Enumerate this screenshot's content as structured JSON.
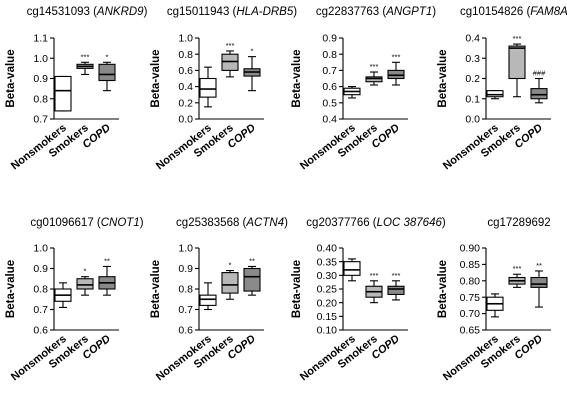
{
  "colors": {
    "nonsmokers": "#ffffff",
    "smokers": "#b8b8b8",
    "copd": "#8a8a8a",
    "line": "#000000"
  },
  "chart_data": [
    {
      "type": "box",
      "title": {
        "prefix": "cg14531093 (",
        "gene": "ANKRD9",
        "suffix": ")"
      },
      "ylabel": "Beta-value",
      "ylim": [
        0.7,
        1.1
      ],
      "yticks": [
        "0.7",
        "0.8",
        "0.9",
        "1.0",
        "1.1"
      ],
      "categories": [
        "Nonsmokers",
        "Smokers",
        "COPD"
      ],
      "boxes": [
        {
          "min": 0.74,
          "q1": 0.74,
          "median": 0.84,
          "q3": 0.91,
          "max": 0.91,
          "sig": ""
        },
        {
          "min": 0.92,
          "q1": 0.95,
          "median": 0.96,
          "q3": 0.97,
          "max": 0.98,
          "sig": "***"
        },
        {
          "min": 0.84,
          "q1": 0.89,
          "median": 0.92,
          "q3": 0.97,
          "max": 0.98,
          "sig": "*"
        }
      ]
    },
    {
      "type": "box",
      "title": {
        "prefix": "cg15011943 (",
        "gene": "HLA-DRB5",
        "suffix": ")"
      },
      "ylabel": "Beta-value",
      "ylim": [
        0.0,
        1.0
      ],
      "yticks": [
        "0.0",
        "0.2",
        "0.4",
        "0.6",
        "0.8",
        "1.0"
      ],
      "categories": [
        "Nonsmokers",
        "Smokers",
        "COPD"
      ],
      "boxes": [
        {
          "min": 0.15,
          "q1": 0.27,
          "median": 0.37,
          "q3": 0.5,
          "max": 0.64,
          "sig": ""
        },
        {
          "min": 0.52,
          "q1": 0.6,
          "median": 0.71,
          "q3": 0.8,
          "max": 0.84,
          "sig": "***"
        },
        {
          "min": 0.35,
          "q1": 0.53,
          "median": 0.58,
          "q3": 0.62,
          "max": 0.77,
          "sig": "*"
        }
      ]
    },
    {
      "type": "box",
      "title": {
        "prefix": "cg22837763 (",
        "gene": "ANGPT1",
        "suffix": ")"
      },
      "ylabel": "Beta-value",
      "ylim": [
        0.4,
        0.9
      ],
      "yticks": [
        "0.4",
        "0.5",
        "0.6",
        "0.7",
        "0.8",
        "0.9"
      ],
      "categories": [
        "Nonsmokers",
        "Smokers",
        "COPD"
      ],
      "boxes": [
        {
          "min": 0.53,
          "q1": 0.55,
          "median": 0.57,
          "q3": 0.59,
          "max": 0.6,
          "sig": ""
        },
        {
          "min": 0.61,
          "q1": 0.63,
          "median": 0.65,
          "q3": 0.66,
          "max": 0.69,
          "sig": "***"
        },
        {
          "min": 0.61,
          "q1": 0.65,
          "median": 0.67,
          "q3": 0.7,
          "max": 0.75,
          "sig": "***"
        }
      ]
    },
    {
      "type": "box",
      "title": {
        "prefix": "cg10154826 (",
        "gene": "FAM8A1",
        "suffix": ")"
      },
      "ylabel": "Beta-value",
      "ylim": [
        0.0,
        0.4
      ],
      "yticks": [
        "0.0",
        "0.1",
        "0.2",
        "0.3",
        "0.4"
      ],
      "categories": [
        "Nonsmokers",
        "Smokers",
        "COPD"
      ],
      "boxes": [
        {
          "min": 0.1,
          "q1": 0.11,
          "median": 0.12,
          "q3": 0.14,
          "max": 0.14,
          "sig": ""
        },
        {
          "min": 0.11,
          "q1": 0.2,
          "median": 0.35,
          "q3": 0.36,
          "max": 0.37,
          "sig": "***"
        },
        {
          "min": 0.08,
          "q1": 0.1,
          "median": 0.12,
          "q3": 0.15,
          "max": 0.2,
          "sig": "###"
        }
      ]
    },
    {
      "type": "box",
      "title": {
        "prefix": "cg01096617 (",
        "gene": "CNOT1",
        "suffix": ")"
      },
      "ylabel": "Beta-value",
      "ylim": [
        0.6,
        1.0
      ],
      "yticks": [
        "0.6",
        "0.7",
        "0.8",
        "0.9",
        "1.0"
      ],
      "categories": [
        "Nonsmokers",
        "Smokers",
        "COPD"
      ],
      "boxes": [
        {
          "min": 0.71,
          "q1": 0.74,
          "median": 0.77,
          "q3": 0.8,
          "max": 0.83,
          "sig": ""
        },
        {
          "min": 0.77,
          "q1": 0.8,
          "median": 0.82,
          "q3": 0.85,
          "max": 0.86,
          "sig": "*"
        },
        {
          "min": 0.77,
          "q1": 0.8,
          "median": 0.83,
          "q3": 0.86,
          "max": 0.91,
          "sig": "**"
        }
      ]
    },
    {
      "type": "box",
      "title": {
        "prefix": "cg25383568 (",
        "gene": "ACTN4",
        "suffix": ")"
      },
      "ylabel": "Beta-value",
      "ylim": [
        0.6,
        1.0
      ],
      "yticks": [
        "0.6",
        "0.7",
        "0.8",
        "0.9",
        "1.0"
      ],
      "categories": [
        "Nonsmokers",
        "Smokers",
        "COPD"
      ],
      "boxes": [
        {
          "min": 0.7,
          "q1": 0.72,
          "median": 0.75,
          "q3": 0.77,
          "max": 0.83,
          "sig": ""
        },
        {
          "min": 0.75,
          "q1": 0.78,
          "median": 0.82,
          "q3": 0.88,
          "max": 0.89,
          "sig": "*"
        },
        {
          "min": 0.77,
          "q1": 0.79,
          "median": 0.86,
          "q3": 0.9,
          "max": 0.91,
          "sig": "**"
        }
      ]
    },
    {
      "type": "box",
      "title": {
        "prefix": "cg20377766 (",
        "gene": "LOC 387646",
        "suffix": ")"
      },
      "ylabel": "Beta-value",
      "ylim": [
        0.1,
        0.4
      ],
      "yticks": [
        "0.10",
        "0.15",
        "0.20",
        "0.25",
        "0.30",
        "0.35",
        "0.40"
      ],
      "categories": [
        "Nonsmokers",
        "Smokers",
        "COPD"
      ],
      "boxes": [
        {
          "min": 0.28,
          "q1": 0.3,
          "median": 0.32,
          "q3": 0.35,
          "max": 0.36,
          "sig": ""
        },
        {
          "min": 0.2,
          "q1": 0.22,
          "median": 0.24,
          "q3": 0.26,
          "max": 0.28,
          "sig": "***"
        },
        {
          "min": 0.21,
          "q1": 0.23,
          "median": 0.25,
          "q3": 0.26,
          "max": 0.28,
          "sig": "***"
        }
      ]
    },
    {
      "type": "box",
      "title": {
        "prefix": "cg17289692",
        "gene": "",
        "suffix": ""
      },
      "ylabel": "Beta-value",
      "ylim": [
        0.65,
        0.9
      ],
      "yticks": [
        "0.65",
        "0.70",
        "0.75",
        "0.80",
        "0.85",
        "0.90"
      ],
      "categories": [
        "Nonsmokers",
        "Smokers",
        "COPD"
      ],
      "boxes": [
        {
          "min": 0.69,
          "q1": 0.71,
          "median": 0.73,
          "q3": 0.75,
          "max": 0.76,
          "sig": ""
        },
        {
          "min": 0.78,
          "q1": 0.79,
          "median": 0.8,
          "q3": 0.81,
          "max": 0.82,
          "sig": "***"
        },
        {
          "min": 0.72,
          "q1": 0.78,
          "median": 0.79,
          "q3": 0.81,
          "max": 0.83,
          "sig": "**"
        }
      ]
    }
  ]
}
